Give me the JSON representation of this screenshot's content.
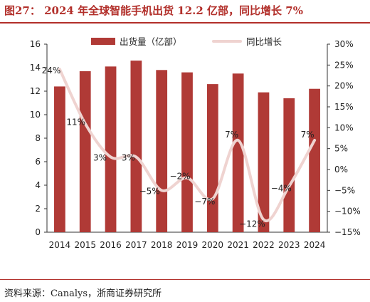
{
  "title": "图27： 2024 年全球智能手机出货 12.2 亿部，同比增长 7%",
  "source": "资料来源：Canalys，浙商证券研究所",
  "colors": {
    "bar": "#b03a36",
    "line": "#efd3d0",
    "title": "#b22f2a"
  },
  "chart_data": {
    "type": "bar+line",
    "categories": [
      "2014",
      "2015",
      "2016",
      "2017",
      "2018",
      "2019",
      "2020",
      "2021",
      "2022",
      "2023",
      "2024"
    ],
    "series": [
      {
        "name": "出货量（亿部）",
        "type": "bar",
        "axis": "left",
        "values": [
          12.4,
          13.7,
          14.1,
          14.6,
          13.8,
          13.6,
          12.6,
          13.5,
          11.9,
          11.4,
          12.2
        ]
      },
      {
        "name": "同比增长",
        "type": "line",
        "axis": "right",
        "values": [
          24,
          11,
          3,
          3,
          -5,
          -2,
          -7,
          7,
          -12,
          -4,
          7
        ],
        "labels": [
          "24%",
          "11%",
          "3%",
          "3%",
          "−5%",
          "−2%",
          "−7%",
          "7%",
          "−12%",
          "−4%",
          "7%"
        ]
      }
    ],
    "y_left": {
      "min": 0,
      "max": 16,
      "step": 2,
      "ticks": [
        "0",
        "2",
        "4",
        "6",
        "8",
        "10",
        "12",
        "14",
        "16"
      ]
    },
    "y_right": {
      "min": -15,
      "max": 30,
      "step": 5,
      "ticks": [
        "−15%",
        "−10%",
        "−5%",
        "0%",
        "5%",
        "10%",
        "15%",
        "20%",
        "25%",
        "30%"
      ]
    },
    "legend_position": "top-center",
    "grid": false
  }
}
